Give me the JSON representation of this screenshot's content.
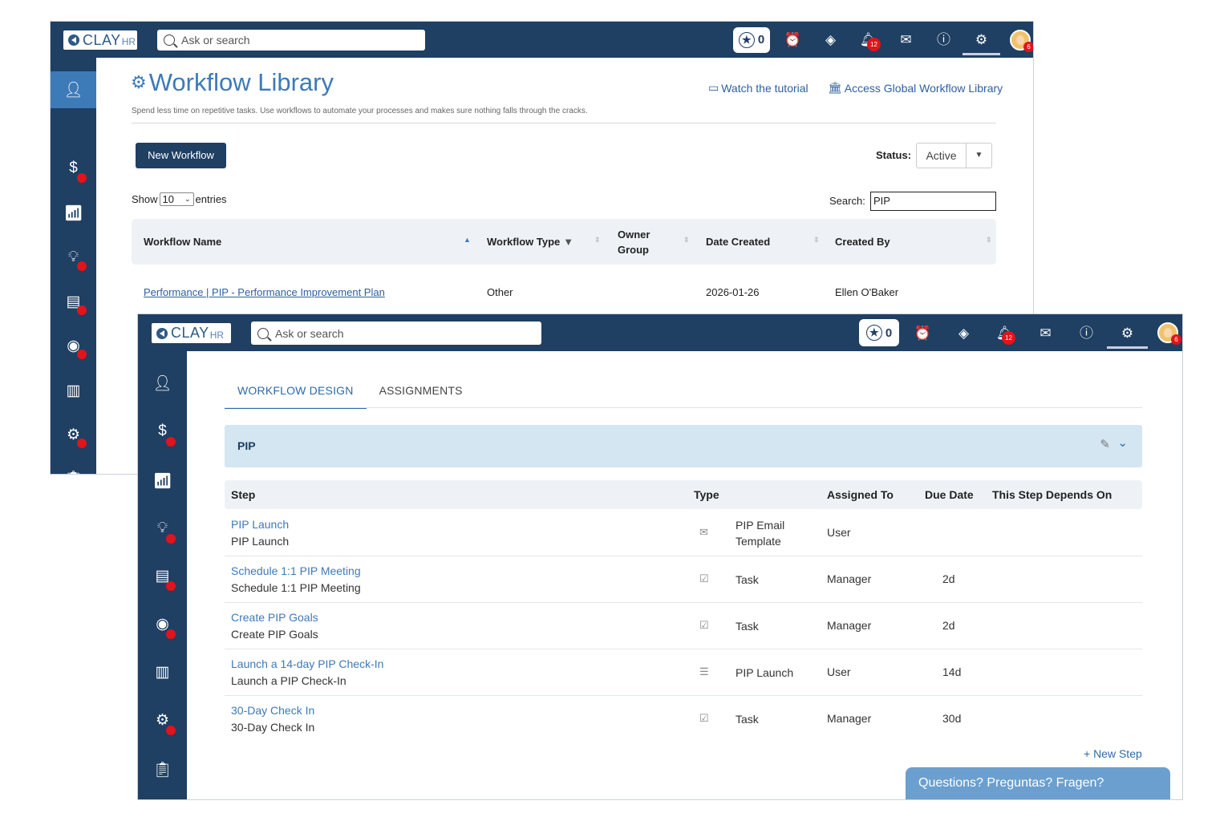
{
  "brand": {
    "name": "CLAY",
    "suffix": "HR"
  },
  "topbar": {
    "search_placeholder": "Ask or search",
    "star_count": "0",
    "notification_count": "12",
    "avatar_badge": "6"
  },
  "library": {
    "title": "Workflow Library",
    "description": "Spend less time on repetitive tasks. Use workflows to automate your processes and makes sure nothing falls through the cracks.",
    "watch_tutorial": "Watch the tutorial",
    "access_global": "Access Global Workflow Library",
    "new_workflow": "New Workflow",
    "status_label": "Status:",
    "status_value": "Active",
    "show_label": "Show",
    "entries_value": "10",
    "entries_label": "entries",
    "search_label": "Search:",
    "search_value": "PIP",
    "columns": {
      "name": "Workflow Name",
      "type": "Workflow Type",
      "owner": "Owner Group",
      "date": "Date Created",
      "created_by": "Created By"
    },
    "rows": [
      {
        "name": "Performance | PIP - Performance Improvement Plan",
        "type": "Other",
        "owner": "",
        "date": "2026-01-26",
        "created_by": "Ellen O'Baker"
      }
    ]
  },
  "design": {
    "tabs": [
      "WORKFLOW DESIGN",
      "ASSIGNMENTS"
    ],
    "workflow_title": "PIP",
    "columns": {
      "step": "Step",
      "type": "Type",
      "assigned": "Assigned To",
      "due": "Due Date",
      "depends": "This Step Depends On"
    },
    "steps": [
      {
        "title": "PIP Launch",
        "subtitle": "PIP Launch",
        "type_icon": "envelope-icon",
        "type_label": "PIP Email Template",
        "assigned": "User",
        "due": ""
      },
      {
        "title": "Schedule 1:1 PIP Meeting",
        "subtitle": "Schedule 1:1 PIP Meeting",
        "type_icon": "clipboard-check-icon",
        "type_label": "Task",
        "assigned": "Manager",
        "due": "2d"
      },
      {
        "title": "Create PIP Goals",
        "subtitle": "Create PIP Goals",
        "type_icon": "clipboard-check-icon",
        "type_label": "Task",
        "assigned": "Manager",
        "due": "2d"
      },
      {
        "title": "Launch a 14-day PIP Check-In",
        "subtitle": "Launch a PIP Check-In",
        "type_icon": "checklist-icon",
        "type_label": "PIP Launch",
        "assigned": "User",
        "due": "14d"
      },
      {
        "title": "30-Day Check In",
        "subtitle": "30-Day Check In",
        "type_icon": "clipboard-check-icon",
        "type_label": "Task",
        "assigned": "Manager",
        "due": "30d"
      }
    ],
    "new_step": "+ New Step",
    "chat": "Questions? Preguntas? Fragen?"
  },
  "colors": {
    "navy": "#1f3f63",
    "accent": "#3d7ab8",
    "badge": "#e0141a",
    "pip_bar": "#d4e6f1"
  }
}
